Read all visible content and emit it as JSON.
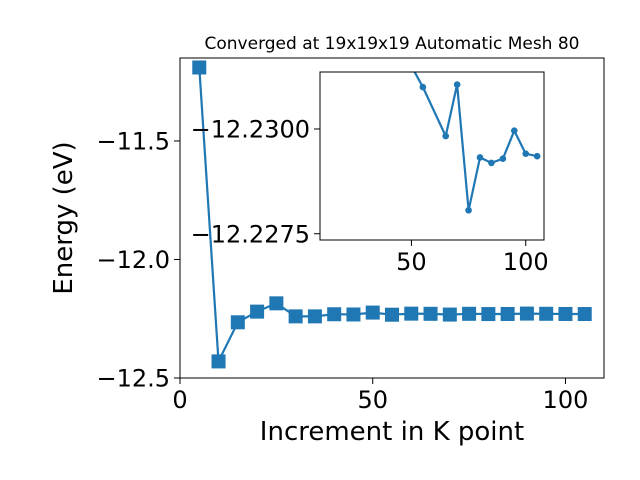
{
  "chart_data": [
    {
      "type": "line",
      "title": "Converged at 19x19x19 Automatic Mesh 80",
      "xlabel": "Increment in K point",
      "ylabel": "Energy (eV)",
      "xlim": [
        0,
        110
      ],
      "ylim": [
        -12.5,
        -11.15
      ],
      "xticks": [
        "0",
        "50",
        "100"
      ],
      "yticks": [
        "−11.5",
        "−12.0",
        "−12.5"
      ],
      "grid": false,
      "marker": "square",
      "series": [
        {
          "x": [
            5,
            10,
            15,
            20,
            25,
            30,
            35,
            40,
            45,
            50,
            55,
            60,
            65,
            70,
            75,
            80,
            85,
            90,
            95,
            100,
            105
          ],
          "y": [
            -11.19,
            -12.43,
            -12.265,
            -12.22,
            -12.185,
            -12.24,
            -12.24,
            -12.231,
            -12.232,
            -12.224,
            -12.233,
            -12.2285,
            -12.2292,
            -12.2324,
            -12.2292,
            -12.2302,
            -12.2299,
            -12.2282,
            -12.2291,
            -12.2299,
            -12.2301
          ]
        }
      ]
    },
    {
      "type": "line",
      "title": "",
      "xlim": [
        10,
        108
      ],
      "ylim": [
        -12.22735,
        -12.23136
      ],
      "xticks": [
        "50",
        "100"
      ],
      "yticks": [
        "−12.2300",
        "−12.2275"
      ],
      "grid": false,
      "marker": "circle",
      "series": [
        {
          "x": [
            50,
            55,
            65,
            70,
            75,
            80,
            85,
            90,
            95,
            100,
            105
          ],
          "y": [
            -12.2315,
            -12.231,
            -12.22983,
            -12.23106,
            -12.22806,
            -12.22932,
            -12.22919,
            -12.22929,
            -12.22996,
            -12.22941,
            -12.22935
          ]
        }
      ]
    }
  ],
  "colors": {
    "line": "#1f77b4",
    "axes": "#000000",
    "background": "#ffffff"
  }
}
